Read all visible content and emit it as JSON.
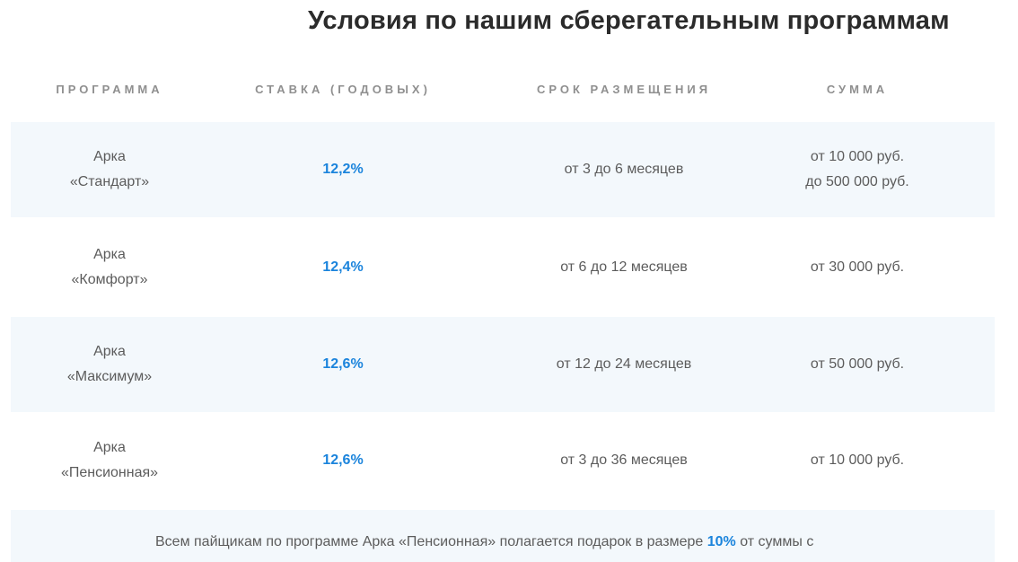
{
  "title": "Условия по нашим сберегательным программам",
  "table": {
    "headers": [
      "ПРОГРАММА",
      "СТАВКА (ГОДОВЫХ)",
      "СРОК РАЗМЕЩЕНИЯ",
      "СУММА"
    ],
    "rows": [
      {
        "program_line1": "Арка",
        "program_line2": "«Стандарт»",
        "rate": "12,2%",
        "term": "от 3 до 6 месяцев",
        "amount_line1": "от 10 000 руб.",
        "amount_line2": "до 500 000 руб."
      },
      {
        "program_line1": "Арка",
        "program_line2": "«Комфорт»",
        "rate": "12,4%",
        "term": "от 6 до 12 месяцев",
        "amount_line1": "от 30 000 руб.",
        "amount_line2": ""
      },
      {
        "program_line1": "Арка",
        "program_line2": "«Максимум»",
        "rate": "12,6%",
        "term": "от 12 до 24 месяцев",
        "amount_line1": "от 50 000 руб.",
        "amount_line2": ""
      },
      {
        "program_line1": "Арка",
        "program_line2": "«Пенсионная»",
        "rate": "12,6%",
        "term": "от 3 до 36 месяцев",
        "amount_line1": "от 10 000 руб.",
        "amount_line2": ""
      }
    ]
  },
  "note": {
    "before": "Всем пайщикам по программе Арка «Пенсионная» полагается подарок в размере ",
    "highlight": "10%",
    "after": " от суммы с"
  },
  "colors": {
    "accent": "#1b84dc",
    "row_shade": "#f3f8fc",
    "header_text": "#8f8f8f",
    "body_text": "#5c5c5c",
    "title_text": "#2b2b2b"
  }
}
